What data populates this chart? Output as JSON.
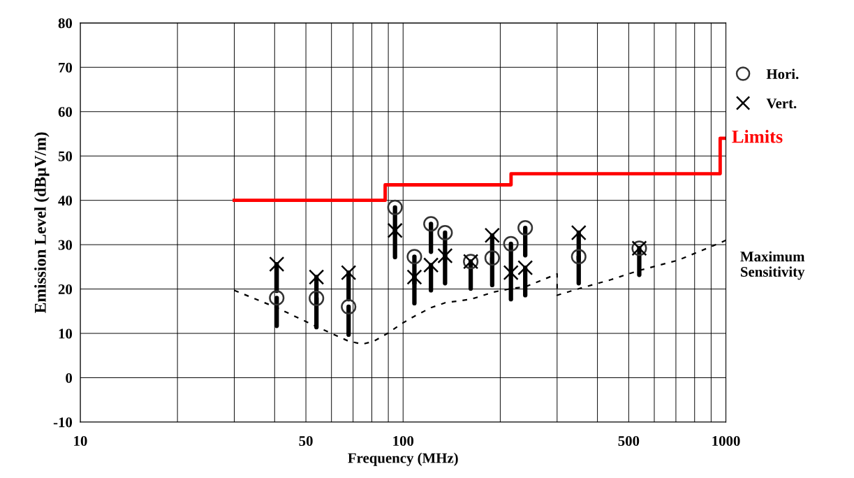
{
  "chart_data": {
    "type": "scatter",
    "xlabel": "Frequency (MHz)",
    "ylabel": "Emission Level (dBμV/m)",
    "log": "x",
    "xlim": [
      10,
      1000
    ],
    "xticks": [
      10,
      {
        "value": 20,
        "label": null
      },
      {
        "value": 30,
        "label": null
      },
      {
        "value": 40,
        "label": null
      },
      50,
      {
        "value": 60,
        "label": null
      },
      {
        "value": 70,
        "label": null
      },
      {
        "value": 80,
        "label": null
      },
      {
        "value": 90,
        "label": null
      },
      100,
      {
        "value": 200,
        "label": null
      },
      {
        "value": 300,
        "label": null
      },
      {
        "value": 400,
        "label": null
      },
      500,
      {
        "value": 600,
        "label": null
      },
      {
        "value": 700,
        "label": null
      },
      {
        "value": 800,
        "label": null
      },
      {
        "value": 900,
        "label": null
      },
      1000
    ],
    "ylim": [
      -10,
      80
    ],
    "yticks": [
      -10,
      0,
      10,
      20,
      30,
      40,
      50,
      60,
      70,
      80
    ],
    "grid": true,
    "legend": "right",
    "series": [
      {
        "name": "Hori.",
        "marker": "circle",
        "color": "#333333",
        "x": [
          40.6,
          53.9,
          67.8,
          94.4,
          108.4,
          122,
          134.9,
          162,
          188.8,
          215.8,
          239,
          350,
          539
        ],
        "values": [
          18.0,
          17.9,
          16.0,
          38.4,
          27.3,
          34.7,
          32.7,
          26.2,
          27.0,
          30.2,
          33.8,
          27.3,
          29.2
        ],
        "errors": [
          [
            11.7,
            18.0
          ],
          [
            11.4,
            17.9
          ],
          [
            9.7,
            16.0
          ],
          [
            32.4,
            38.4
          ],
          [
            21.3,
            27.3
          ],
          [
            28.4,
            34.7
          ],
          [
            26.7,
            32.7
          ],
          [
            20.1,
            26.2
          ],
          [
            20.9,
            27.0
          ],
          [
            24.0,
            30.2
          ],
          [
            27.6,
            33.8
          ],
          [
            21.3,
            27.3
          ],
          [
            23.2,
            29.2
          ]
        ]
      },
      {
        "name": "Vert.",
        "marker": "cross",
        "color": "#000000",
        "x": [
          40.6,
          53.9,
          67.8,
          94.4,
          108.4,
          122,
          134.9,
          162,
          188.8,
          215.8,
          239,
          350,
          539
        ],
        "values": [
          25.6,
          22.7,
          23.7,
          33.2,
          22.7,
          25.4,
          27.5,
          26.2,
          32.1,
          23.7,
          24.8,
          32.7,
          29.2
        ],
        "errors": [
          [
            19.6,
            25.6
          ],
          [
            16.7,
            22.7
          ],
          [
            17.7,
            23.7
          ],
          [
            27.2,
            33.2
          ],
          [
            16.8,
            22.7
          ],
          [
            19.7,
            25.4
          ],
          [
            21.3,
            27.5
          ],
          null,
          [
            26.0,
            32.1
          ],
          [
            17.7,
            23.7
          ],
          [
            18.6,
            24.8
          ],
          [
            26.7,
            32.7
          ],
          null
        ]
      },
      {
        "name": "Limits",
        "type": "step",
        "color": "#ff0000",
        "x": [
          30,
          88,
          216,
          960,
          1000
        ],
        "values": [
          40,
          43.5,
          46,
          54,
          54
        ]
      },
      {
        "name": "Maximum\nSensitivity",
        "type": "line",
        "line_style": "dashed",
        "color": "#000000",
        "x": [
          30,
          40.6,
          54,
          68,
          75,
          81,
          90,
          99,
          108,
          122,
          135,
          162,
          171,
          190,
          216,
          239,
          300,
          300,
          351,
          440,
          539,
          712,
          966,
          1000
        ],
        "values": [
          19.7,
          15.8,
          11.5,
          8.2,
          7.6,
          8.2,
          10.1,
          12.2,
          13.8,
          15.8,
          16.9,
          17.7,
          18.2,
          19.3,
          20.1,
          20.5,
          23.4,
          18.6,
          20.1,
          22.1,
          24.2,
          26.5,
          30.5,
          31.0
        ]
      }
    ]
  }
}
